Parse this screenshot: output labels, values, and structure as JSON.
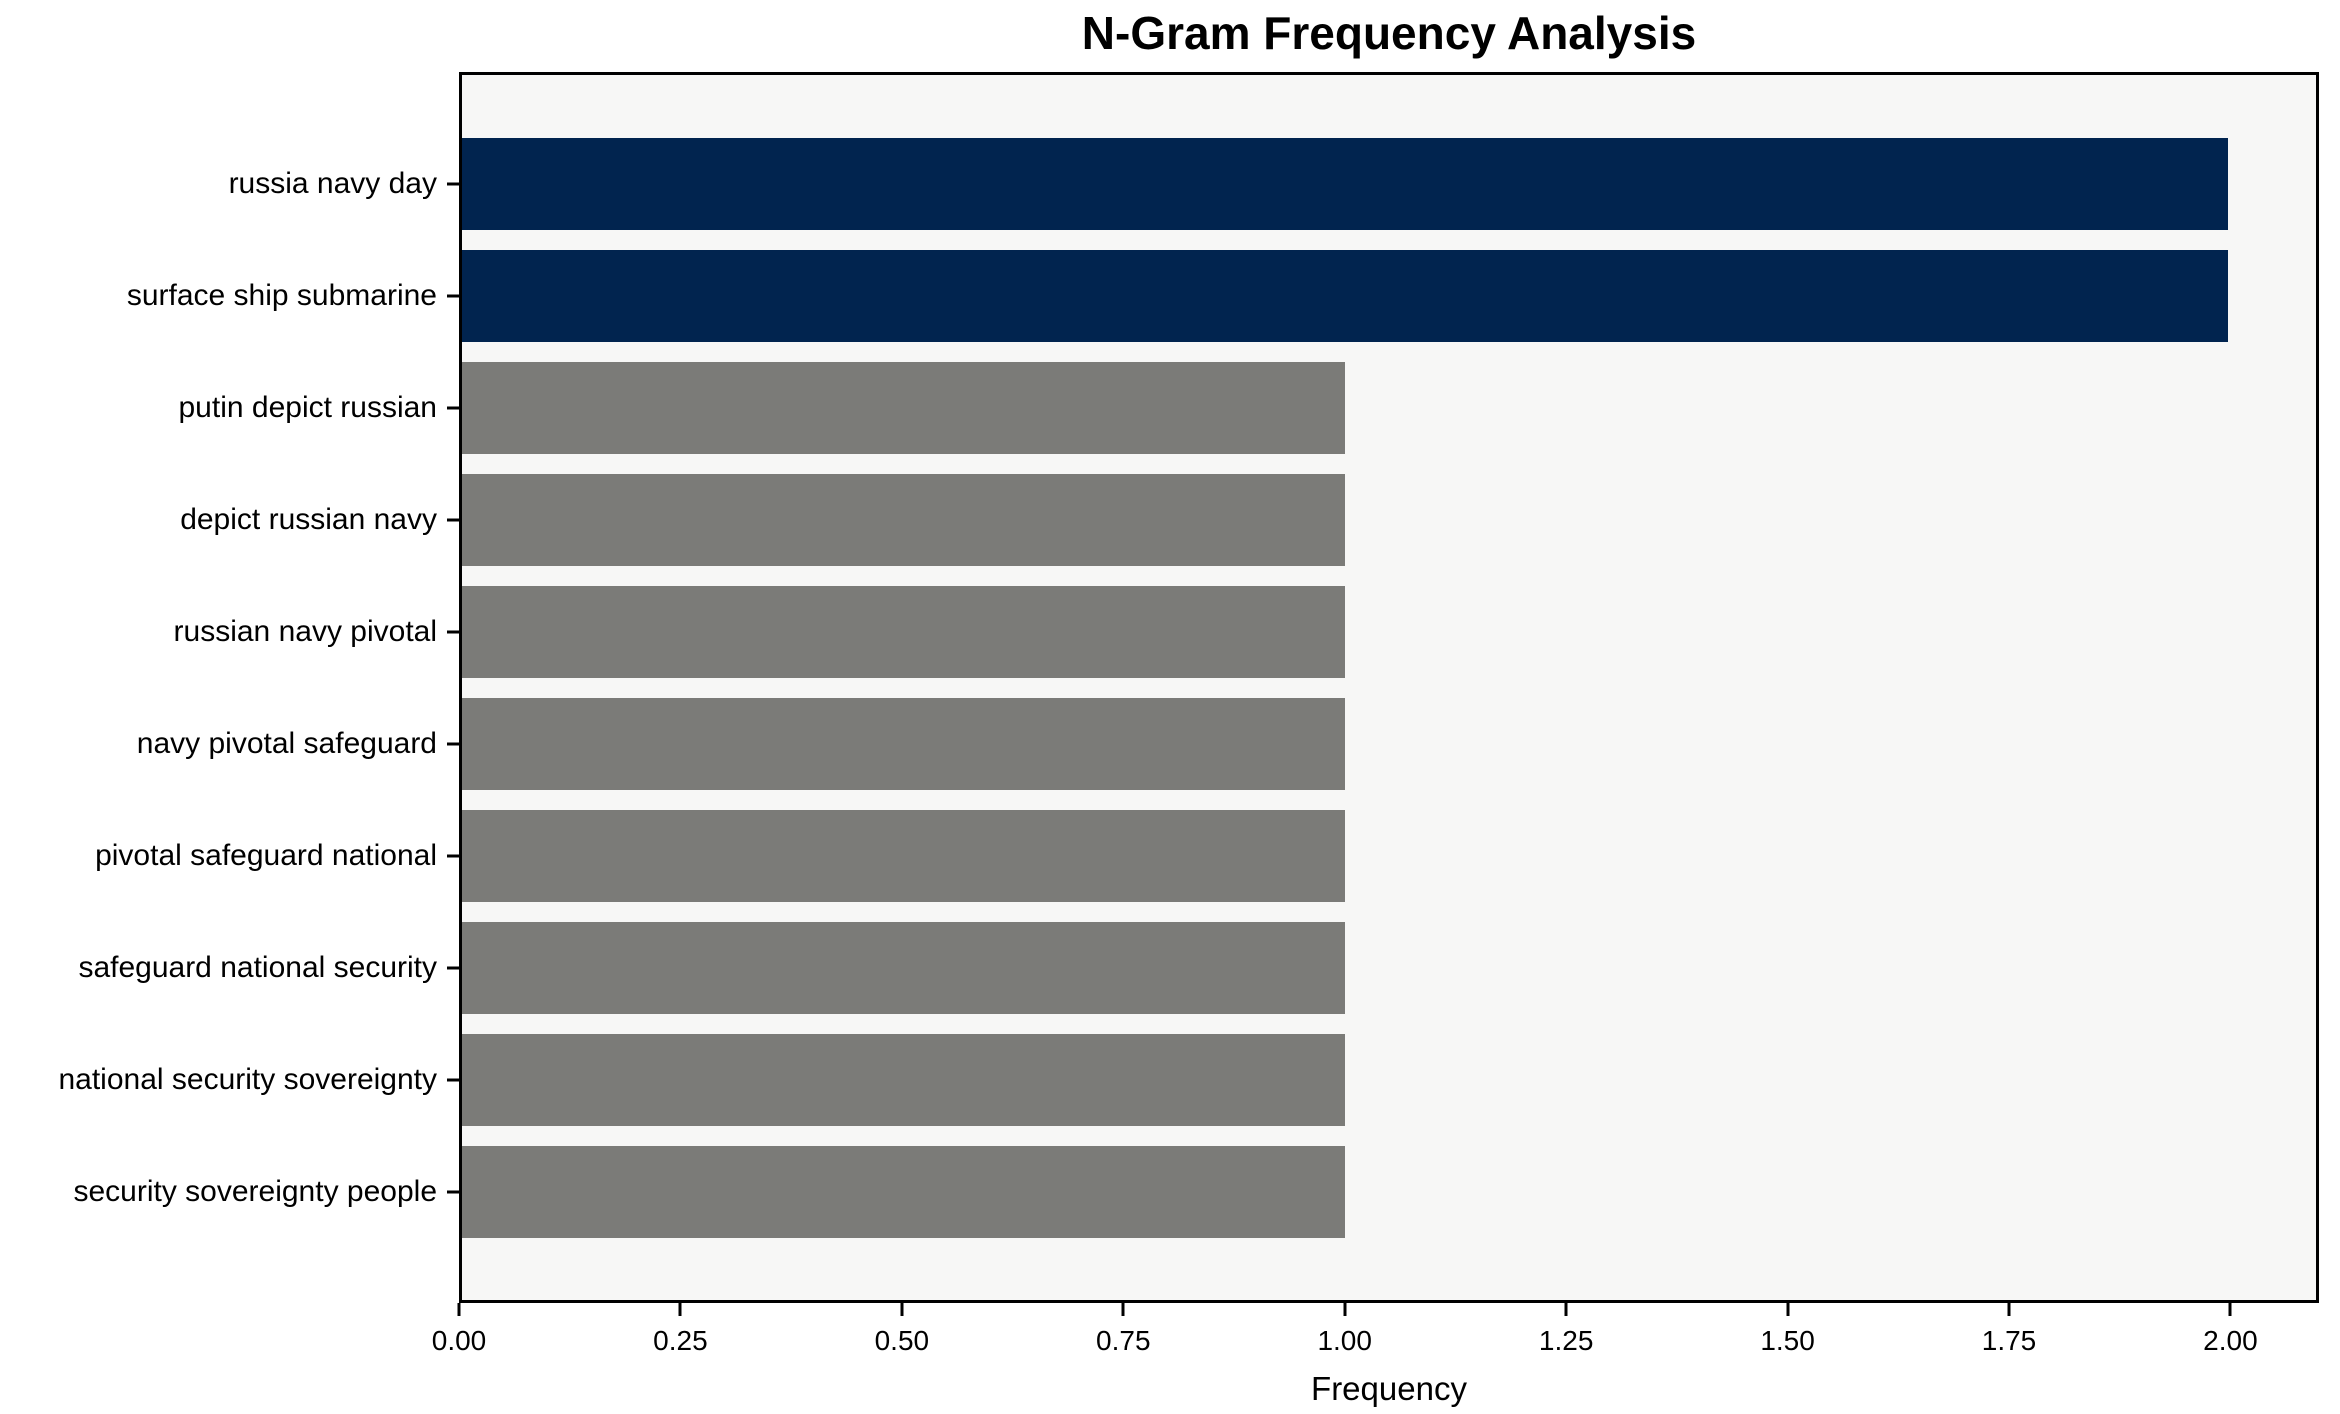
{
  "figure": {
    "title": "N-Gram Frequency Analysis",
    "xlabel": "Frequency"
  },
  "chart_data": {
    "type": "bar",
    "orientation": "horizontal",
    "title": "N-Gram Frequency Analysis",
    "xlabel": "Frequency",
    "ylabel": "",
    "categories": [
      "russia navy day",
      "surface ship submarine",
      "putin depict russian",
      "depict russian navy",
      "russian navy pivotal",
      "navy pivotal safeguard",
      "pivotal safeguard national",
      "safeguard national security",
      "national security sovereignty",
      "security sovereignty people"
    ],
    "values": [
      2,
      2,
      1,
      1,
      1,
      1,
      1,
      1,
      1,
      1
    ],
    "bar_colors": [
      "#01244f",
      "#01244f",
      "#7b7b78",
      "#7b7b78",
      "#7b7b78",
      "#7b7b78",
      "#7b7b78",
      "#7b7b78",
      "#7b7b78",
      "#7b7b78"
    ],
    "highlight_color": "#01244f",
    "default_color": "#7b7b78",
    "plot_background": "#f7f7f6",
    "xlim": [
      0,
      2.1
    ],
    "xticks": [
      0,
      0.25,
      0.5,
      0.75,
      1.0,
      1.25,
      1.5,
      1.75,
      2.0
    ],
    "xtick_labels": [
      "0.00",
      "0.25",
      "0.50",
      "0.75",
      "1.00",
      "1.25",
      "1.50",
      "1.75",
      "2.00"
    ],
    "grid": false,
    "legend": null
  }
}
